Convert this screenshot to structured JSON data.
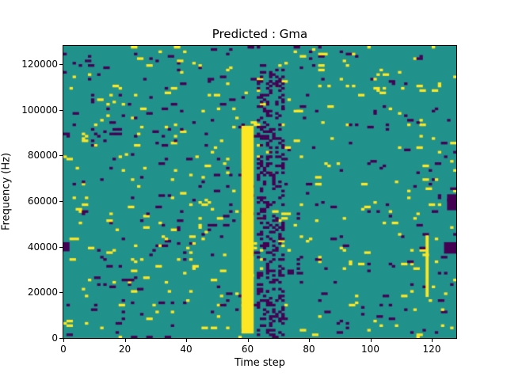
{
  "chart_data": {
    "type": "heatmap",
    "title": "Predicted : Gma",
    "xlabel": "Time step",
    "ylabel": "Frequency (Hz)",
    "x_range": [
      0,
      128
    ],
    "y_range": [
      0,
      128000
    ],
    "grid": [
      128,
      128
    ],
    "x_ticks": [
      0,
      20,
      40,
      60,
      80,
      100,
      120
    ],
    "y_ticks": [
      0,
      20000,
      40000,
      60000,
      80000,
      100000,
      120000
    ],
    "colormap": "viridis-3-level",
    "colors": {
      "low": "#440154",
      "mid": "#21918c",
      "high": "#fde725"
    },
    "background_value": "mid",
    "legend": "none",
    "grid_lines": false,
    "noise": {
      "seed": 42,
      "yellow_density": 0.021,
      "purple_density": 0.021
    },
    "features": [
      {
        "name": "main-yellow-band",
        "type": "rect",
        "color": "high",
        "x0": 58,
        "x1": 62,
        "y0": 2,
        "y1": 93
      },
      {
        "name": "post-band-purple-cluster",
        "type": "noise",
        "color": "low",
        "x0": 63,
        "x1": 72,
        "y0": 0,
        "y1": 118,
        "density": 0.28
      },
      {
        "name": "right-yellow-streak",
        "type": "rect",
        "color": "high",
        "x0": 118,
        "x1": 119,
        "y0": 18,
        "y1": 45
      },
      {
        "name": "right-edge-purple-blob-1",
        "type": "rect",
        "color": "low",
        "x0": 124,
        "x1": 128,
        "y0": 37,
        "y1": 42
      },
      {
        "name": "right-edge-purple-blob-2",
        "type": "rect",
        "color": "low",
        "x0": 125,
        "x1": 128,
        "y0": 56,
        "y1": 63
      },
      {
        "name": "left-edge-purple-mark",
        "type": "rect",
        "color": "low",
        "x0": 0,
        "x1": 2,
        "y0": 38,
        "y1": 42
      }
    ]
  }
}
